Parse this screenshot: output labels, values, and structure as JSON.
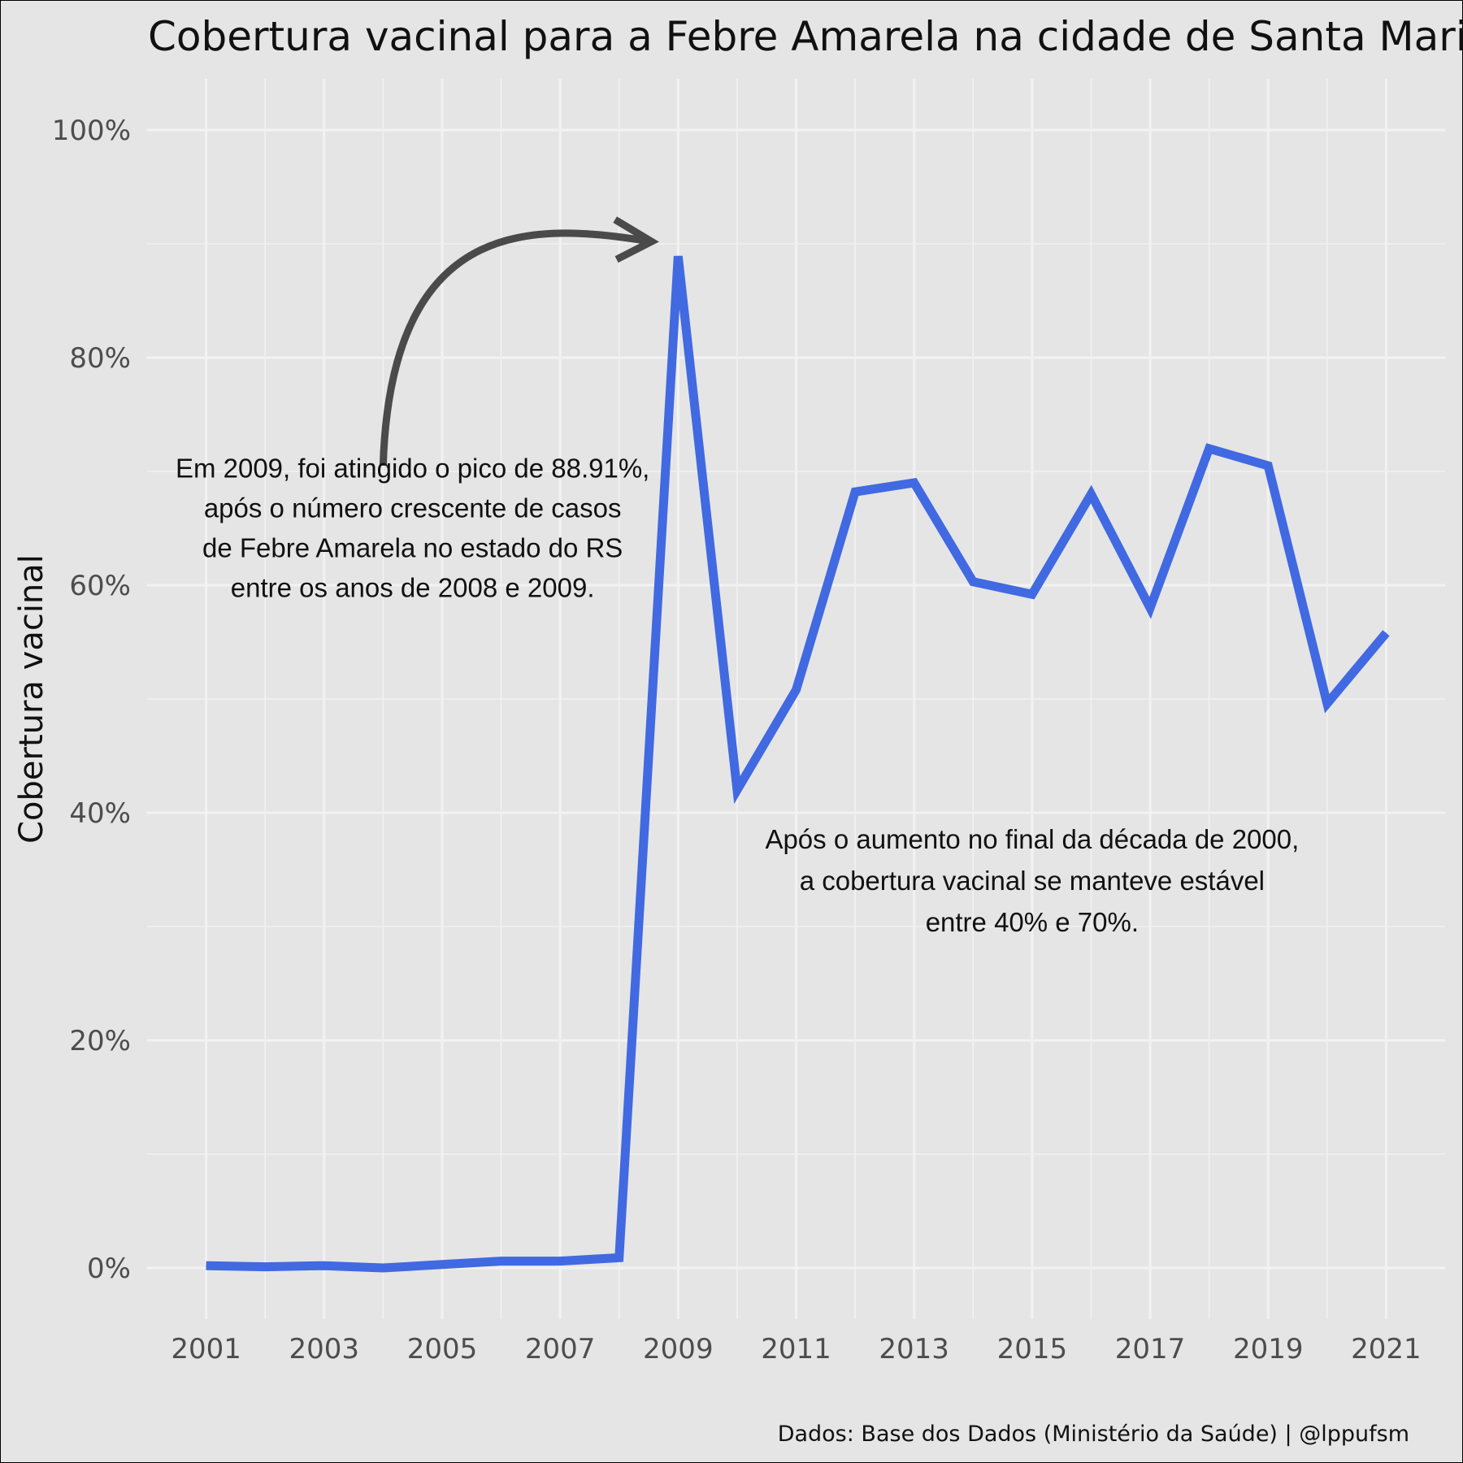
{
  "chart_data": {
    "type": "line",
    "title": "Cobertura vacinal para a Febre Amarela na cidade de Santa Maria,",
    "xlabel": "",
    "ylabel": "Cobertura vacinal",
    "x": [
      2001,
      2002,
      2003,
      2004,
      2005,
      2006,
      2007,
      2008,
      2009,
      2010,
      2011,
      2012,
      2013,
      2014,
      2015,
      2016,
      2017,
      2018,
      2019,
      2020,
      2021
    ],
    "series": [
      {
        "values": [
          0.2,
          0.1,
          0.2,
          0.0,
          0.3,
          0.6,
          0.6,
          0.9,
          88.91,
          42.0,
          50.8,
          68.2,
          69.0,
          60.3,
          59.2,
          68.0,
          58.0,
          72.0,
          70.5,
          49.6,
          55.8
        ],
        "color": "#4169e1"
      }
    ],
    "ylim": [
      -4.5,
      104.5
    ],
    "xlim": [
      2000,
      2022
    ],
    "yticks": [
      0,
      20,
      40,
      60,
      80,
      100
    ],
    "ytick_labels": [
      "0%",
      "20%",
      "40%",
      "60%",
      "80%",
      "100%"
    ],
    "xticks": [
      2001,
      2003,
      2005,
      2007,
      2009,
      2011,
      2013,
      2015,
      2017,
      2019,
      2021
    ],
    "xtick_labels": [
      "2001",
      "2003",
      "2005",
      "2007",
      "2009",
      "2011",
      "2013",
      "2015",
      "2017",
      "2019",
      "2021"
    ],
    "grid": true,
    "annotations": [
      {
        "lines": [
          "Em 2009, foi atingido o pico de 88.91%,",
          "após o número crescente de casos",
          "de Febre Amarela no estado do RS",
          "entre os anos de 2008 e 2009."
        ],
        "x": 2004.5,
        "y": 65
      },
      {
        "lines": [
          "Após o aumento no final da década de 2000,",
          "a cobertura vacinal se manteve estável",
          "entre 40% e 70%."
        ],
        "x": 2015,
        "y": 34
      }
    ],
    "arrow": {
      "from": [
        2004,
        70.5
      ],
      "to": [
        2008.55,
        90.2
      ]
    },
    "caption": "Dados: Base dos Dados (Ministério da Saúde) | @lppufsm"
  }
}
